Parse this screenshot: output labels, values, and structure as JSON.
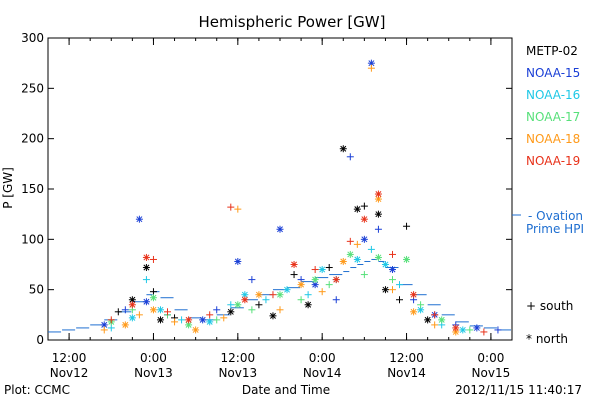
{
  "chart_data": {
    "type": "scatter",
    "title": "Hemispheric Power [GW]",
    "ylabel": "P [GW]",
    "xlabel": "Date and Time",
    "ylim": [
      0,
      300
    ],
    "yticks": [
      0,
      50,
      100,
      150,
      200,
      250,
      300
    ],
    "xlim": [
      0,
      66
    ],
    "x_units": "hours since 2012-11-12 09:00",
    "xticks": [
      {
        "x": 3,
        "line1": "12:00",
        "line2": "Nov12"
      },
      {
        "x": 15,
        "line1": "0:00",
        "line2": "Nov13"
      },
      {
        "x": 27,
        "line1": "12:00",
        "line2": "Nov13"
      },
      {
        "x": 39,
        "line1": "0:00",
        "line2": "Nov14"
      },
      {
        "x": 51,
        "line1": "12:00",
        "line2": "Nov14"
      },
      {
        "x": 63,
        "line1": "0:00",
        "line2": "Nov15"
      }
    ],
    "footer_left": "Plot: CCMC",
    "footer_right": "2012/11/15 11:40:17",
    "legend": [
      {
        "name": "METP-02",
        "color": "#000000"
      },
      {
        "name": "NOAA-15",
        "color": "#1a3fd6"
      },
      {
        "name": "NOAA-16",
        "color": "#1fc8e6"
      },
      {
        "name": "NOAA-17",
        "color": "#57e07a"
      },
      {
        "name": "NOAA-18",
        "color": "#ff9a1a"
      },
      {
        "name": "NOAA-19",
        "color": "#e8321a"
      }
    ],
    "ovation_label_1": "- Ovation",
    "ovation_label_2": "Prime HPI",
    "ovation_color": "#1f6fd1",
    "symbol_south_label": "+ south",
    "symbol_north_label": "* north",
    "ovation_series": [
      [
        0,
        8
      ],
      [
        2,
        10
      ],
      [
        4,
        12
      ],
      [
        6,
        15
      ],
      [
        8,
        20
      ],
      [
        10,
        28
      ],
      [
        12,
        38
      ],
      [
        14,
        45
      ],
      [
        15,
        48
      ],
      [
        16,
        42
      ],
      [
        18,
        30
      ],
      [
        20,
        22
      ],
      [
        22,
        20
      ],
      [
        24,
        25
      ],
      [
        26,
        32
      ],
      [
        28,
        40
      ],
      [
        30,
        45
      ],
      [
        32,
        50
      ],
      [
        34,
        52
      ],
      [
        36,
        58
      ],
      [
        38,
        62
      ],
      [
        40,
        65
      ],
      [
        42,
        68
      ],
      [
        43,
        72
      ],
      [
        44,
        75
      ],
      [
        45,
        78
      ],
      [
        46,
        80
      ],
      [
        47,
        78
      ],
      [
        48,
        72
      ],
      [
        50,
        55
      ],
      [
        52,
        45
      ],
      [
        54,
        35
      ],
      [
        56,
        25
      ],
      [
        58,
        18
      ],
      [
        60,
        14
      ],
      [
        62,
        12
      ],
      [
        64,
        10
      ],
      [
        66,
        8
      ]
    ],
    "series": [
      {
        "name": "METP-02",
        "color": "#000000",
        "points": [
          [
            10,
            28,
            "S"
          ],
          [
            12,
            40,
            "N"
          ],
          [
            14,
            72,
            "N"
          ],
          [
            15,
            48,
            "S"
          ],
          [
            16,
            20,
            "N"
          ],
          [
            18,
            22,
            "S"
          ],
          [
            26,
            28,
            "N"
          ],
          [
            30,
            35,
            "S"
          ],
          [
            32,
            24,
            "N"
          ],
          [
            35,
            65,
            "S"
          ],
          [
            37,
            35,
            "N"
          ],
          [
            40,
            72,
            "S"
          ],
          [
            42,
            190,
            "N"
          ],
          [
            44,
            130,
            "N"
          ],
          [
            45,
            133,
            "S"
          ],
          [
            47,
            125,
            "N"
          ],
          [
            48,
            50,
            "N"
          ],
          [
            50,
            40,
            "S"
          ],
          [
            51,
            113,
            "S"
          ],
          [
            54,
            20,
            "N"
          ]
        ]
      },
      {
        "name": "NOAA-15",
        "color": "#1a3fd6",
        "points": [
          [
            8,
            15,
            "N"
          ],
          [
            11,
            30,
            "S"
          ],
          [
            13,
            120,
            "N"
          ],
          [
            14,
            38,
            "N"
          ],
          [
            17,
            25,
            "S"
          ],
          [
            22,
            20,
            "N"
          ],
          [
            24,
            30,
            "S"
          ],
          [
            27,
            78,
            "N"
          ],
          [
            29,
            60,
            "S"
          ],
          [
            33,
            110,
            "N"
          ],
          [
            36,
            60,
            "S"
          ],
          [
            38,
            55,
            "N"
          ],
          [
            41,
            40,
            "S"
          ],
          [
            43,
            182,
            "S"
          ],
          [
            45,
            100,
            "N"
          ],
          [
            46,
            275,
            "N"
          ],
          [
            47,
            110,
            "S"
          ],
          [
            49,
            70,
            "N"
          ],
          [
            52,
            40,
            "S"
          ],
          [
            55,
            25,
            "N"
          ],
          [
            58,
            15,
            "S"
          ],
          [
            61,
            12,
            "N"
          ],
          [
            64,
            10,
            "S"
          ]
        ]
      },
      {
        "name": "NOAA-16",
        "color": "#1fc8e6",
        "points": [
          [
            9,
            12,
            "S"
          ],
          [
            12,
            22,
            "N"
          ],
          [
            14,
            60,
            "S"
          ],
          [
            16,
            30,
            "N"
          ],
          [
            19,
            20,
            "S"
          ],
          [
            23,
            18,
            "N"
          ],
          [
            26,
            35,
            "S"
          ],
          [
            28,
            45,
            "N"
          ],
          [
            31,
            40,
            "S"
          ],
          [
            34,
            50,
            "N"
          ],
          [
            37,
            45,
            "S"
          ],
          [
            39,
            70,
            "N"
          ],
          [
            41,
            60,
            "S"
          ],
          [
            44,
            80,
            "N"
          ],
          [
            46,
            90,
            "S"
          ],
          [
            48,
            75,
            "N"
          ],
          [
            50,
            55,
            "S"
          ],
          [
            53,
            30,
            "N"
          ],
          [
            56,
            15,
            "S"
          ],
          [
            59,
            10,
            "N"
          ]
        ]
      },
      {
        "name": "NOAA-17",
        "color": "#57e07a",
        "points": [
          [
            9,
            18,
            "N"
          ],
          [
            12,
            30,
            "S"
          ],
          [
            15,
            42,
            "N"
          ],
          [
            17,
            25,
            "S"
          ],
          [
            20,
            15,
            "N"
          ],
          [
            24,
            20,
            "S"
          ],
          [
            27,
            35,
            "N"
          ],
          [
            29,
            30,
            "S"
          ],
          [
            33,
            45,
            "N"
          ],
          [
            36,
            40,
            "S"
          ],
          [
            38,
            60,
            "N"
          ],
          [
            40,
            55,
            "S"
          ],
          [
            43,
            85,
            "N"
          ],
          [
            45,
            65,
            "S"
          ],
          [
            47,
            82,
            "N"
          ],
          [
            49,
            60,
            "S"
          ],
          [
            51,
            80,
            "N"
          ],
          [
            53,
            35,
            "S"
          ],
          [
            56,
            20,
            "N"
          ],
          [
            60,
            10,
            "S"
          ]
        ]
      },
      {
        "name": "NOAA-18",
        "color": "#ff9a1a",
        "points": [
          [
            8,
            10,
            "S"
          ],
          [
            11,
            15,
            "N"
          ],
          [
            13,
            25,
            "S"
          ],
          [
            15,
            30,
            "N"
          ],
          [
            18,
            18,
            "S"
          ],
          [
            21,
            10,
            "N"
          ],
          [
            25,
            22,
            "S"
          ],
          [
            27,
            130,
            "S"
          ],
          [
            30,
            45,
            "N"
          ],
          [
            33,
            30,
            "S"
          ],
          [
            36,
            55,
            "N"
          ],
          [
            39,
            48,
            "S"
          ],
          [
            42,
            78,
            "N"
          ],
          [
            44,
            95,
            "S"
          ],
          [
            46,
            270,
            "S"
          ],
          [
            47,
            140,
            "N"
          ],
          [
            49,
            50,
            "S"
          ],
          [
            52,
            28,
            "N"
          ],
          [
            55,
            15,
            "S"
          ],
          [
            58,
            8,
            "N"
          ]
        ]
      },
      {
        "name": "NOAA-19",
        "color": "#e8321a",
        "points": [
          [
            9,
            20,
            "S"
          ],
          [
            12,
            35,
            "N"
          ],
          [
            14,
            82,
            "N"
          ],
          [
            15,
            80,
            "S"
          ],
          [
            17,
            28,
            "S"
          ],
          [
            20,
            20,
            "N"
          ],
          [
            23,
            25,
            "S"
          ],
          [
            26,
            132,
            "S"
          ],
          [
            28,
            40,
            "N"
          ],
          [
            32,
            45,
            "S"
          ],
          [
            35,
            75,
            "N"
          ],
          [
            38,
            70,
            "S"
          ],
          [
            41,
            60,
            "N"
          ],
          [
            43,
            98,
            "S"
          ],
          [
            45,
            120,
            "N"
          ],
          [
            47,
            145,
            "N"
          ],
          [
            49,
            85,
            "S"
          ],
          [
            52,
            45,
            "N"
          ],
          [
            55,
            25,
            "S"
          ],
          [
            58,
            12,
            "N"
          ],
          [
            62,
            8,
            "S"
          ]
        ]
      }
    ]
  }
}
